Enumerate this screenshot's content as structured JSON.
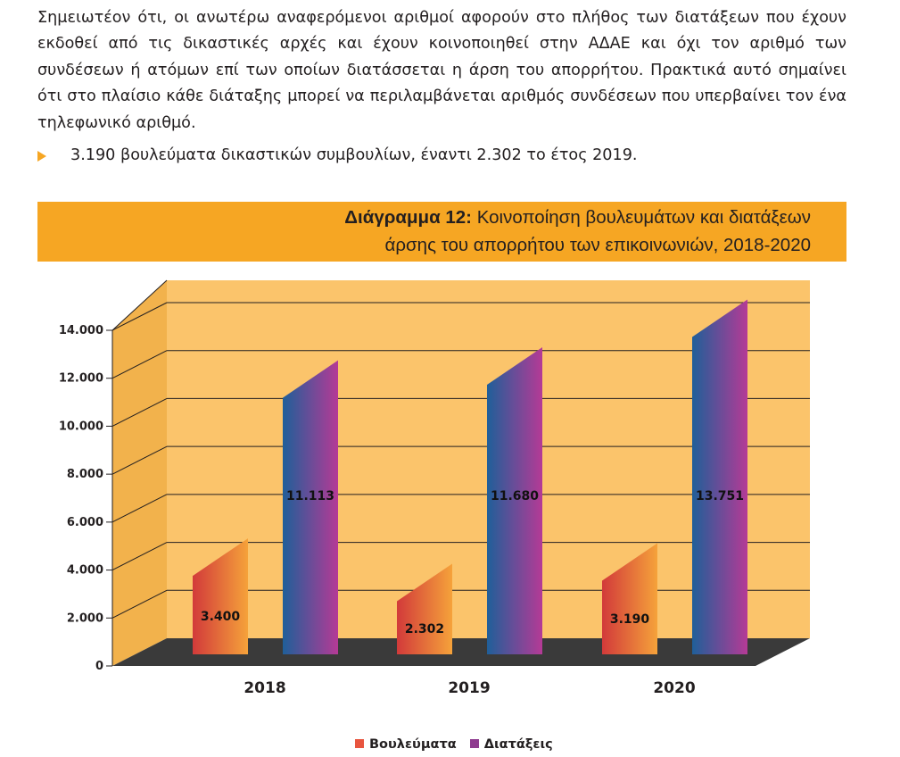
{
  "text": {
    "paragraph": "Σημειωτέον ότι, οι ανωτέρω αναφερόμενοι αριθμοί αφορούν στο πλήθος των διατάξεων που έχουν εκδοθεί από τις δικαστικές αρχές και έχουν κοινοποιηθεί στην ΑΔΑΕ και όχι τον αριθμό των συνδέσεων ή ατόμων επί των οποίων διατάσσεται η άρση του απορρήτου. Πρακτικά αυτό σημαίνει ότι στο πλαίσιο κάθε διάταξης μπορεί να περιλαμβάνεται αριθμός συνδέσεων που υπερβαίνει τον ένα τηλεφωνικό αριθμό.",
    "bullet": "3.190 βουλεύματα δικαστικών συμβουλίων, έναντι 2.302 το έτος 2019."
  },
  "colors": {
    "accent": "#f6a623",
    "bullet_arrow": "#f6a623",
    "plot_back": "#fbc46b",
    "plot_left_wall": "#f2b24c",
    "plot_floor": "#3a3a3a",
    "gridline": "#231f20",
    "vouleumata_dark": "#d23a3a",
    "vouleumata_light": "#f5a23a",
    "diataxeis_dark": "#1f5f99",
    "diataxeis_light": "#b53a96",
    "legend_vouleumata": "#e8553f",
    "legend_diataxeis": "#8e3b8f"
  },
  "chart_data": {
    "type": "bar",
    "title_bold": "Διάγραμμα 12:",
    "title_line1": "Κοινοποίηση βουλευμάτων και διατάξεων",
    "title_line2": "άρσης του απορρήτου των επικοινωνιών, 2018-2020",
    "categories": [
      "2018",
      "2019",
      "2020"
    ],
    "series": [
      {
        "name": "Βουλεύματα",
        "values": [
          3400,
          2302,
          3190
        ],
        "labels": [
          "3.400",
          "2.302",
          "3.190"
        ]
      },
      {
        "name": "Διατάξεις",
        "values": [
          11113,
          11680,
          13751
        ],
        "labels": [
          "11.113",
          "11.680",
          "13.751"
        ]
      }
    ],
    "yticks": [
      0,
      2000,
      4000,
      6000,
      8000,
      10000,
      12000,
      14000
    ],
    "ytick_labels": [
      "0",
      "2.000",
      "4.000",
      "6.000",
      "8.000",
      "10.000",
      "12.000",
      "14.000"
    ],
    "ylim": [
      0,
      14000
    ],
    "grid": true,
    "legend_position": "bottom-center",
    "style": "3d"
  }
}
